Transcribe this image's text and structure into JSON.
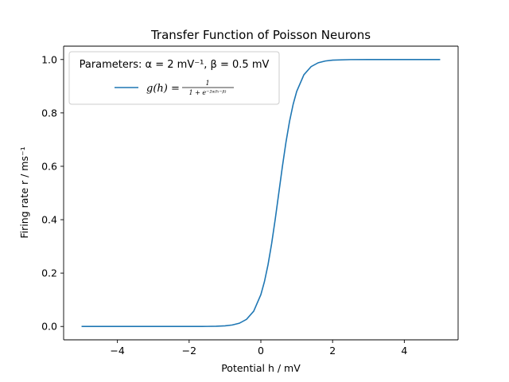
{
  "chart_data": {
    "type": "line",
    "title": "Transfer Function of Poisson Neurons",
    "xlabel": "Potential h / mV",
    "ylabel": "Firing rate r / ms⁻¹",
    "xlim": [
      -5.5,
      5.5
    ],
    "ylim": [
      -0.05,
      1.05
    ],
    "xticks": [
      -4,
      -2,
      0,
      2,
      4
    ],
    "xtick_labels": [
      "−4",
      "−2",
      "0",
      "2",
      "4"
    ],
    "yticks": [
      0.0,
      0.2,
      0.4,
      0.6,
      0.8,
      1.0
    ],
    "ytick_labels": [
      "0.0",
      "0.2",
      "0.4",
      "0.6",
      "0.8",
      "1.0"
    ],
    "grid": false,
    "legend": {
      "placement": "top-left",
      "title": "Parameters: α = 2 mV⁻¹, β = 0.5 mV"
    },
    "series": [
      {
        "name": "g(h) = 1 / (1 + e^(−2α(h−β)))",
        "name_lhs": "g(h) =",
        "name_num": "1",
        "name_den": "1 + e⁻²ᵅ⁽ʰ⁻ᵝ⁾",
        "color": "#1f77b4",
        "x": [
          -5.0,
          -4.5,
          -4.0,
          -3.5,
          -3.0,
          -2.5,
          -2.0,
          -1.5,
          -1.25,
          -1.0,
          -0.8,
          -0.6,
          -0.4,
          -0.2,
          0.0,
          0.1,
          0.2,
          0.3,
          0.4,
          0.5,
          0.6,
          0.7,
          0.8,
          0.9,
          1.0,
          1.2,
          1.4,
          1.6,
          1.8,
          2.0,
          2.5,
          3.0,
          3.5,
          4.0,
          4.5,
          5.0
        ],
        "y": [
          0.0,
          0.0,
          0.0,
          0.0,
          0.0,
          0.0,
          0.0,
          0.0003,
          0.0009,
          0.0025,
          0.0055,
          0.0121,
          0.0266,
          0.0573,
          0.1192,
          0.168,
          0.2315,
          0.31,
          0.4013,
          0.5,
          0.5987,
          0.69,
          0.7685,
          0.832,
          0.8808,
          0.9427,
          0.9734,
          0.9879,
          0.9945,
          0.9975,
          0.9997,
          1.0,
          1.0,
          1.0,
          1.0,
          1.0
        ]
      }
    ]
  }
}
